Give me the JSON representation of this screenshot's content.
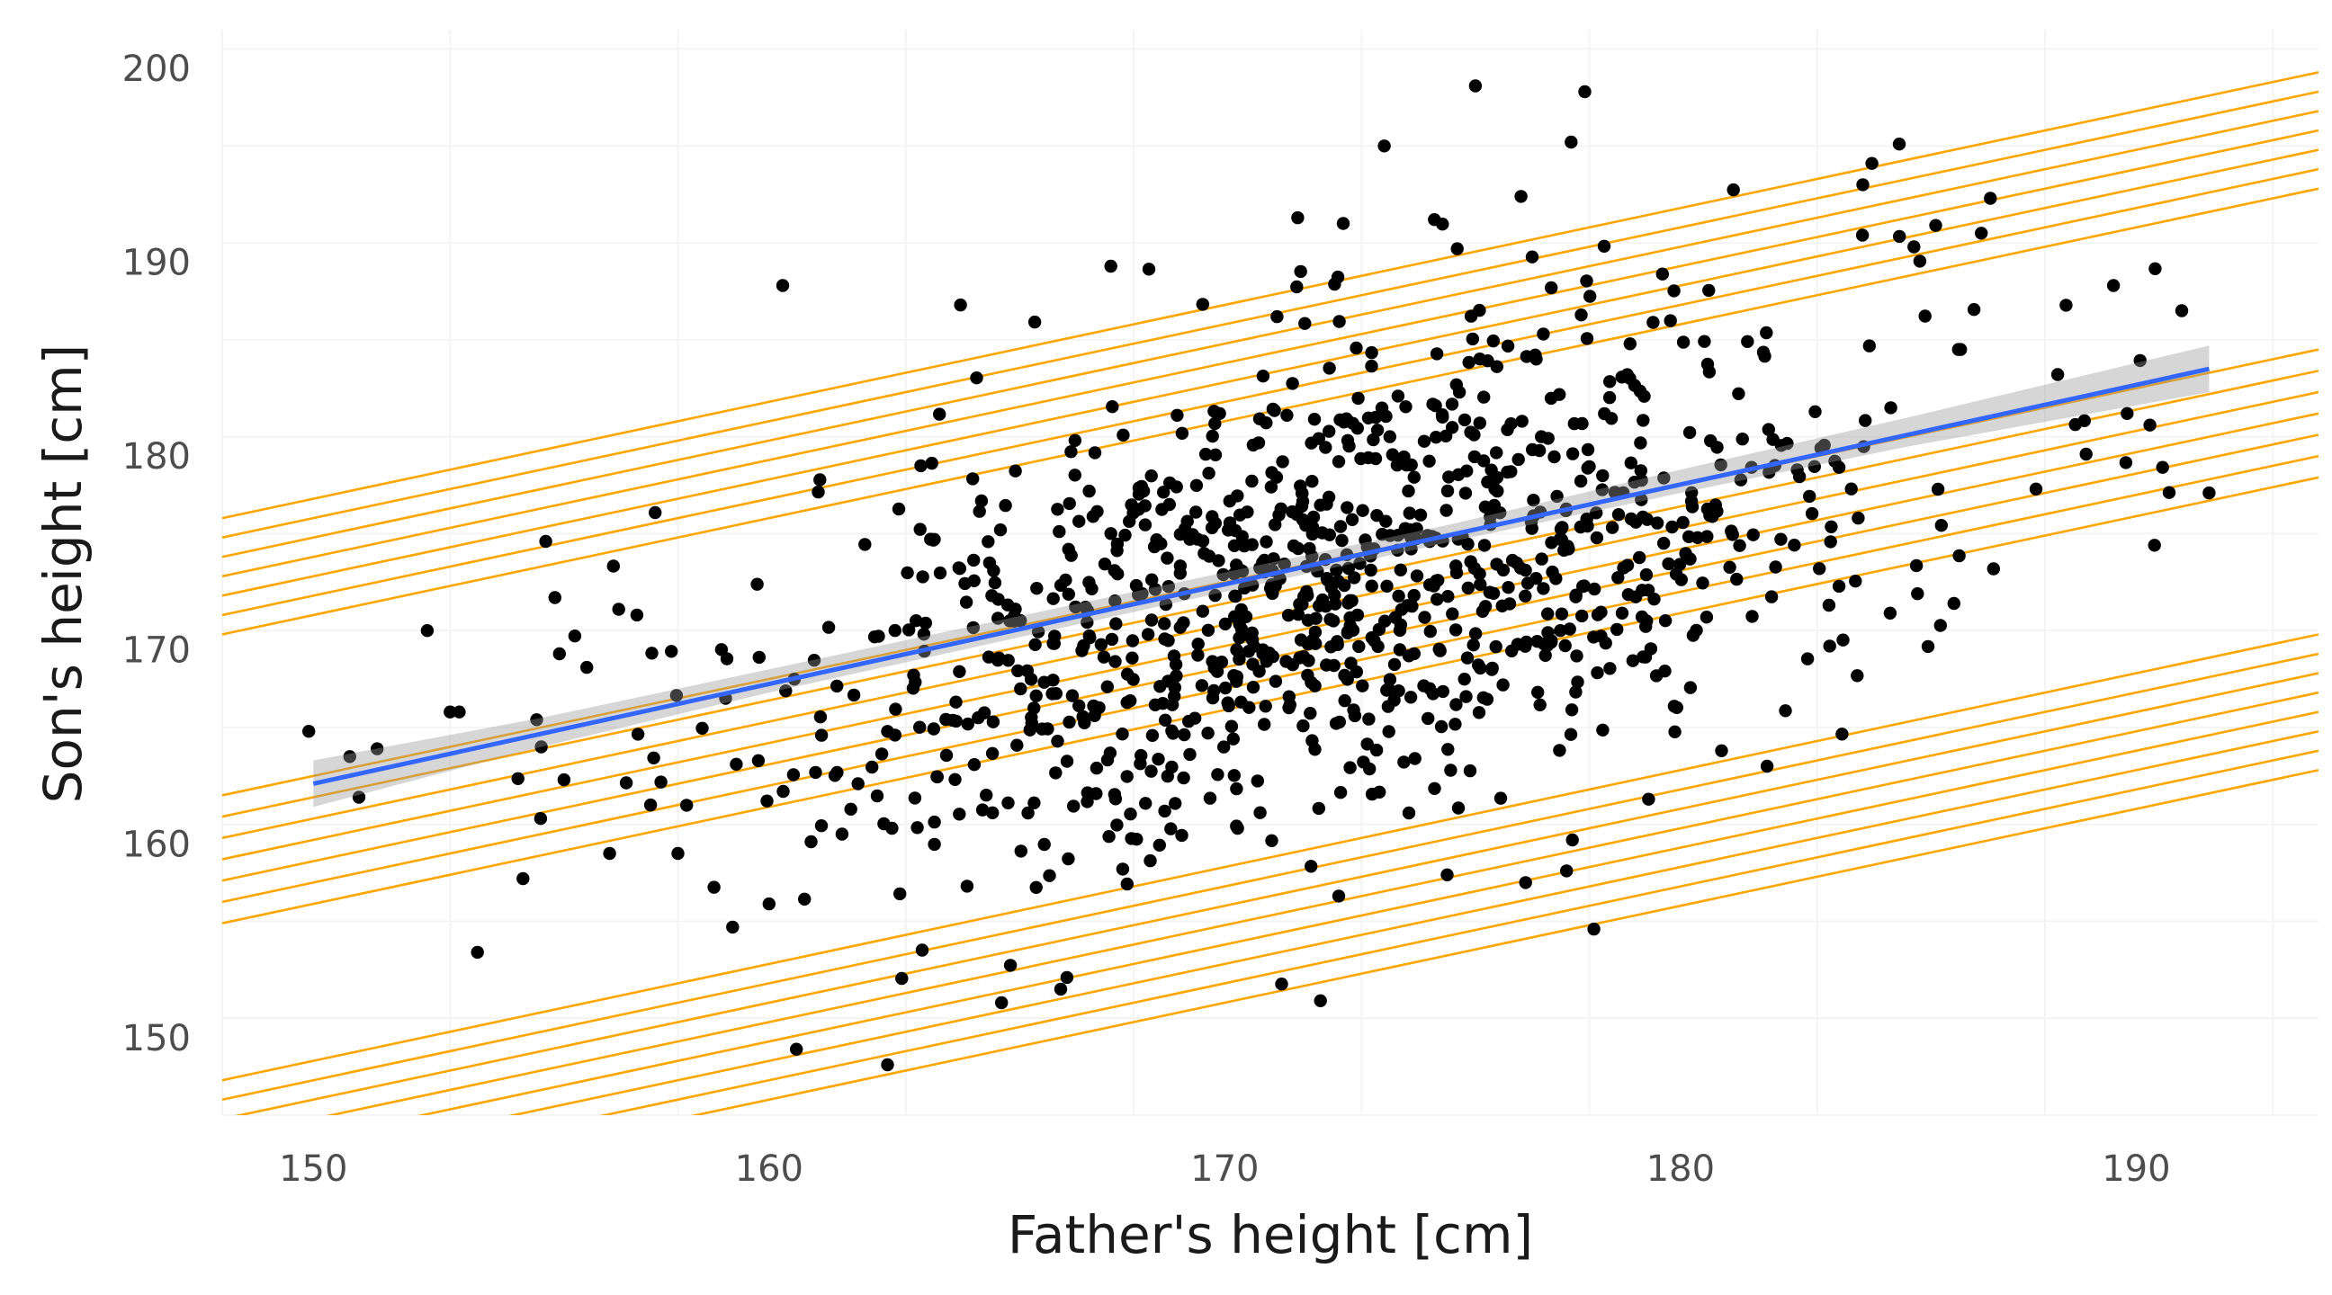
{
  "chart_data": {
    "type": "scatter",
    "title": "",
    "xlabel": "Father's height [cm]",
    "ylabel": "Son's height [cm]",
    "xlim": [
      148,
      194
    ],
    "ylim": [
      146,
      202
    ],
    "x_ticks": [
      150,
      160,
      170,
      180,
      190
    ],
    "y_ticks": [
      150,
      160,
      170,
      180,
      190,
      200
    ],
    "x_tick_labels": [
      "150",
      "160",
      "170",
      "180",
      "190"
    ],
    "y_tick_labels": [
      "150",
      "160",
      "170",
      "180",
      "190",
      "200"
    ],
    "grid": true,
    "legend": "none",
    "colors": {
      "points": "#000000",
      "fit": "#3366FF",
      "band": "#999999",
      "lines": "#FFA500"
    },
    "point_cloud": {
      "n": 1050,
      "x_mean": 172.5,
      "x_sd": 6.2,
      "y_mean": 173.5,
      "y_sd": 7.0,
      "r": 0.49
    },
    "outliers": [
      [
        149.9,
        165.8
      ],
      [
        150.8,
        164.5
      ],
      [
        151.4,
        164.9
      ],
      [
        151.0,
        162.4
      ],
      [
        152.5,
        171.0
      ],
      [
        153.0,
        166.8
      ],
      [
        153.6,
        154.4
      ],
      [
        154.6,
        158.2
      ],
      [
        155.0,
        165.0
      ],
      [
        155.1,
        175.6
      ],
      [
        155.3,
        172.7
      ],
      [
        155.4,
        169.8
      ],
      [
        155.5,
        163.3
      ],
      [
        156.0,
        169.1
      ],
      [
        156.7,
        172.1
      ],
      [
        157.1,
        171.8
      ],
      [
        160.6,
        149.4
      ],
      [
        162.6,
        148.6
      ],
      [
        165.1,
        151.8
      ],
      [
        166.4,
        152.5
      ],
      [
        172.1,
        151.9
      ],
      [
        172.5,
        157.3
      ],
      [
        176.6,
        158.0
      ],
      [
        177.5,
        158.6
      ],
      [
        178.1,
        155.6
      ],
      [
        175.5,
        199.1
      ],
      [
        177.9,
        198.8
      ],
      [
        177.6,
        196.2
      ],
      [
        173.5,
        196.0
      ],
      [
        176.5,
        193.4
      ],
      [
        184.8,
        196.1
      ],
      [
        184.2,
        195.1
      ],
      [
        184.0,
        194.0
      ],
      [
        186.8,
        193.3
      ],
      [
        185.6,
        191.9
      ],
      [
        186.6,
        191.5
      ],
      [
        160.3,
        188.8
      ],
      [
        164.2,
        187.8
      ],
      [
        167.5,
        189.8
      ],
      [
        171.6,
        192.3
      ],
      [
        172.6,
        192.0
      ],
      [
        175.1,
        190.7
      ],
      [
        174.6,
        192.2
      ],
      [
        189.5,
        188.8
      ],
      [
        191.0,
        187.5
      ],
      [
        190.3,
        181.6
      ],
      [
        189.8,
        182.2
      ],
      [
        190.4,
        175.4
      ],
      [
        191.6,
        178.1
      ],
      [
        188.9,
        180.1
      ],
      [
        187.8,
        178.3
      ],
      [
        186.1,
        185.5
      ],
      [
        186.0,
        172.4
      ],
      [
        185.2,
        172.9
      ],
      [
        184.6,
        171.9
      ],
      [
        179.3,
        162.3
      ],
      [
        181.9,
        164.0
      ],
      [
        180.9,
        164.8
      ],
      [
        159.2,
        155.7
      ],
      [
        160.0,
        156.9
      ],
      [
        153.2,
        166.8
      ],
      [
        154.9,
        166.4
      ],
      [
        157.4,
        162.0
      ],
      [
        158.0,
        159.5
      ],
      [
        161.6,
        160.5
      ]
    ],
    "fit_line": {
      "x": [
        150.0,
        191.6
      ],
      "y": [
        163.1,
        184.5
      ]
    },
    "ci_band": {
      "x": [
        150.0,
        155.0,
        160.0,
        165.0,
        170.0,
        175.0,
        180.0,
        185.0,
        191.6
      ],
      "lower": [
        161.9,
        165.0,
        167.8,
        170.4,
        173.0,
        175.6,
        178.1,
        180.5,
        183.3
      ],
      "upper": [
        164.3,
        166.5,
        169.0,
        171.5,
        174.0,
        176.5,
        179.3,
        182.0,
        185.7
      ]
    },
    "parallel_lines": {
      "slope": 0.5,
      "groups": [
        {
          "intercepts_at_148": [
            170.8,
            171.8,
            172.8,
            173.8,
            174.8,
            175.8,
            176.8
          ]
        },
        {
          "intercepts_at_148": [
            155.9,
            157.0,
            158.1,
            159.2,
            160.3,
            161.4,
            162.5
          ]
        },
        {
          "intercepts_at_148": [
            140.8,
            141.8,
            142.8,
            143.8,
            144.8,
            145.8,
            146.8,
            147.8
          ]
        }
      ]
    }
  }
}
